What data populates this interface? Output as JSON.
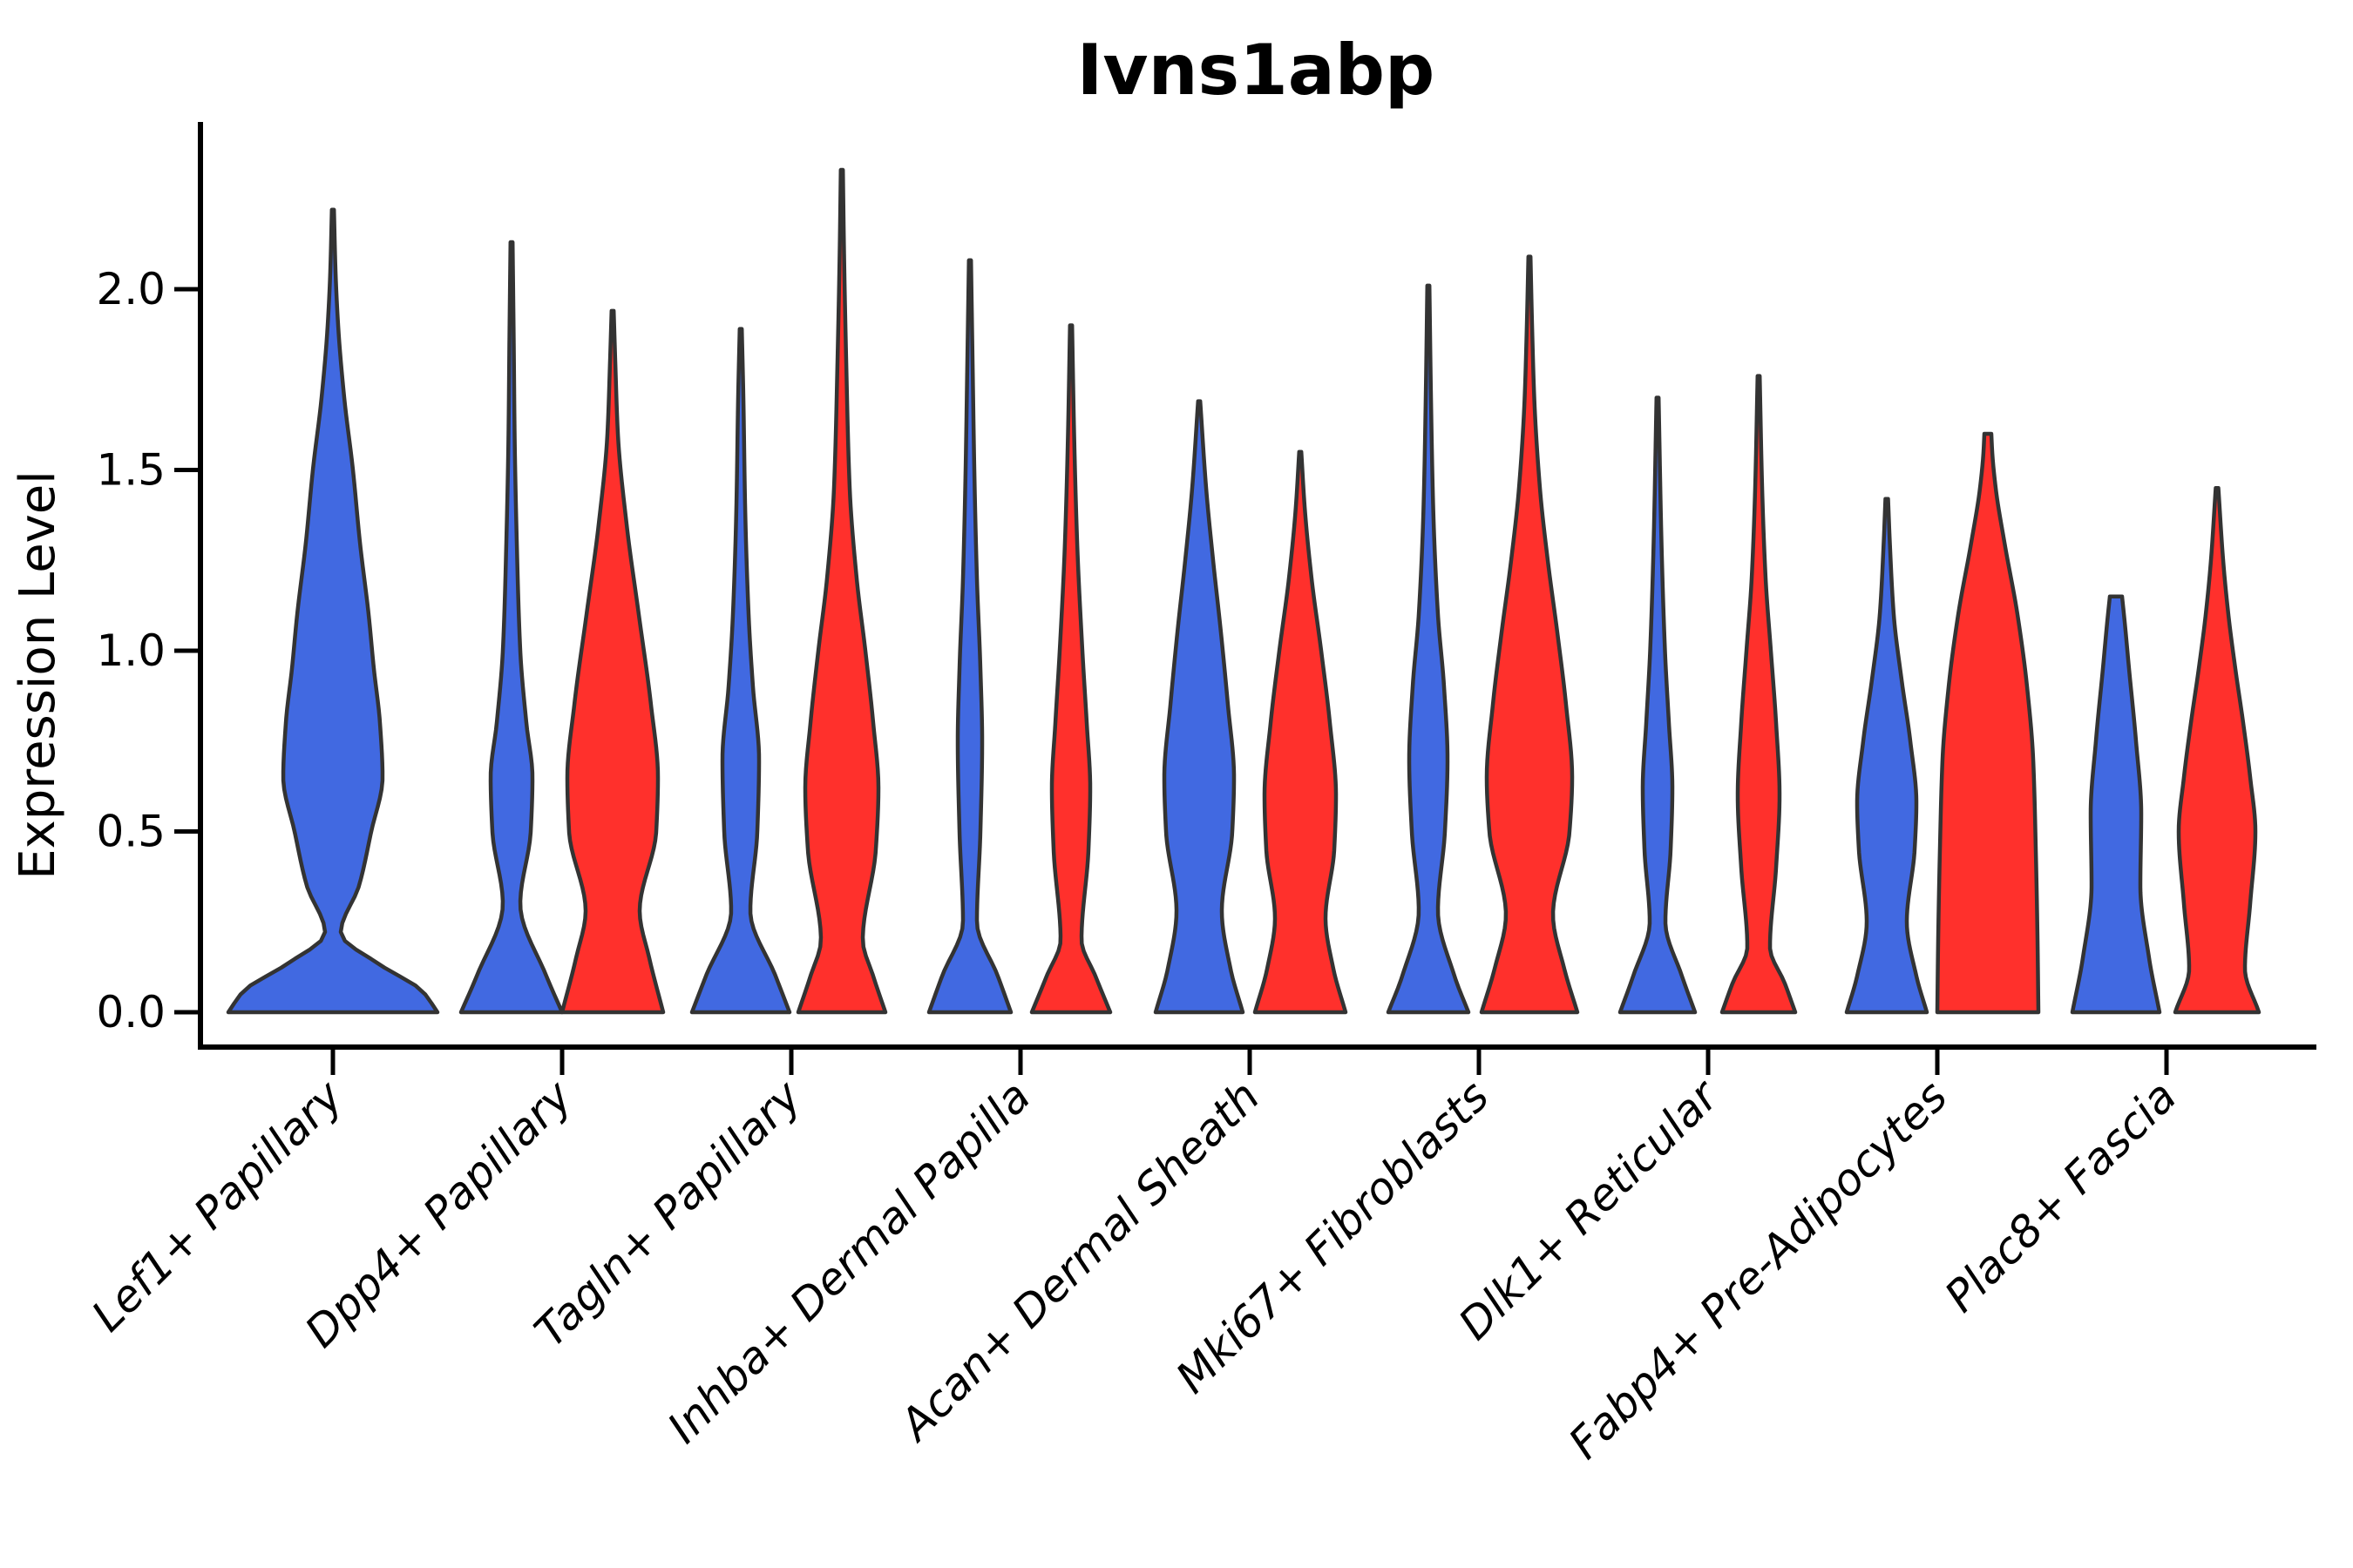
{
  "chart_data": {
    "type": "violin",
    "title": "Ivns1abp",
    "ylabel": "Expression Level",
    "xlabel": "",
    "grid": false,
    "legend": "none",
    "ylim": [
      -0.12,
      2.45
    ],
    "yticks": [
      {
        "label": "0.0",
        "value": 0.0
      },
      {
        "label": "0.5",
        "value": 0.5
      },
      {
        "label": "1.0",
        "value": 1.0
      },
      {
        "label": "1.5",
        "value": 1.5
      },
      {
        "label": "2.0",
        "value": 2.0
      }
    ],
    "categories": [
      "Lef1+ Papillary",
      "Dpp4+ Papillary",
      "Tagln+ Papillary",
      "Inhba+ Dermal Papilla",
      "Acan+ Dermal Sheath",
      "Mki67+ Fibroblasts",
      "Dlk1+ Reticular",
      "Fabp4+ Pre-Adipocytes",
      "Plac8+ Fascia"
    ],
    "groups": [
      "blue",
      "red"
    ],
    "group_colors": {
      "blue": "#4169E1",
      "red": "#FF302C"
    },
    "edge_color": "#333333",
    "axis_color": "#000000",
    "violins": [
      {
        "category_index": 0,
        "category": "Lef1+ Papillary",
        "group": "blue",
        "single": true,
        "max_expression": 2.22,
        "profile": [
          [
            0,
            120
          ],
          [
            0.06,
            102
          ],
          [
            0.13,
            55
          ],
          [
            0.22,
            9
          ],
          [
            0.35,
            30
          ],
          [
            0.5,
            44
          ],
          [
            0.65,
            57
          ],
          [
            0.8,
            54
          ],
          [
            0.95,
            47
          ],
          [
            1.1,
            41
          ],
          [
            1.3,
            31
          ],
          [
            1.5,
            23
          ],
          [
            1.7,
            13
          ],
          [
            1.9,
            6
          ],
          [
            2.05,
            3
          ],
          [
            2.22,
            1.2
          ]
        ]
      },
      {
        "category_index": 1,
        "category": "Dpp4+ Papillary",
        "group": "blue",
        "single": false,
        "max_expression": 2.13,
        "profile": [
          [
            0,
            58
          ],
          [
            0.1,
            40
          ],
          [
            0.3,
            10
          ],
          [
            0.5,
            22
          ],
          [
            0.65,
            24
          ],
          [
            0.8,
            17
          ],
          [
            1.0,
            10
          ],
          [
            1.3,
            6
          ],
          [
            1.6,
            3.5
          ],
          [
            1.85,
            2.5
          ],
          [
            2.13,
            1.2
          ]
        ]
      },
      {
        "category_index": 1,
        "category": "Dpp4+ Papillary",
        "group": "red",
        "single": false,
        "max_expression": 1.94,
        "profile": [
          [
            0,
            58
          ],
          [
            0.15,
            42
          ],
          [
            0.28,
            31
          ],
          [
            0.5,
            50
          ],
          [
            0.65,
            52
          ],
          [
            0.85,
            44
          ],
          [
            1.1,
            30
          ],
          [
            1.35,
            16
          ],
          [
            1.6,
            6
          ],
          [
            1.8,
            3
          ],
          [
            1.94,
            1.2
          ]
        ]
      },
      {
        "category_index": 2,
        "category": "Tagln+ Papillary",
        "group": "blue",
        "single": false,
        "max_expression": 1.89,
        "profile": [
          [
            0,
            56
          ],
          [
            0.1,
            40
          ],
          [
            0.28,
            11
          ],
          [
            0.5,
            19
          ],
          [
            0.7,
            21
          ],
          [
            0.9,
            14
          ],
          [
            1.1,
            9
          ],
          [
            1.4,
            5
          ],
          [
            1.7,
            3
          ],
          [
            1.89,
            1.2
          ]
        ]
      },
      {
        "category_index": 2,
        "category": "Tagln+ Papillary",
        "group": "red",
        "single": false,
        "max_expression": 2.33,
        "profile": [
          [
            0,
            50
          ],
          [
            0.1,
            36
          ],
          [
            0.2,
            24
          ],
          [
            0.45,
            39
          ],
          [
            0.62,
            42
          ],
          [
            0.8,
            36
          ],
          [
            1.0,
            27
          ],
          [
            1.2,
            17
          ],
          [
            1.45,
            9
          ],
          [
            1.8,
            5
          ],
          [
            2.1,
            2.5
          ],
          [
            2.33,
            1.2
          ]
        ]
      },
      {
        "category_index": 3,
        "category": "Inhba+ Dermal Papilla",
        "group": "blue",
        "single": false,
        "max_expression": 2.08,
        "profile": [
          [
            0,
            47
          ],
          [
            0.1,
            32
          ],
          [
            0.25,
            8
          ],
          [
            0.5,
            12
          ],
          [
            0.75,
            14
          ],
          [
            0.95,
            12
          ],
          [
            1.2,
            8
          ],
          [
            1.5,
            5
          ],
          [
            1.8,
            3
          ],
          [
            2.08,
            1.2
          ]
        ]
      },
      {
        "category_index": 3,
        "category": "Inhba+ Dermal Papilla",
        "group": "red",
        "single": false,
        "max_expression": 1.9,
        "profile": [
          [
            0,
            45
          ],
          [
            0.1,
            28
          ],
          [
            0.2,
            12
          ],
          [
            0.45,
            20
          ],
          [
            0.62,
            22
          ],
          [
            0.8,
            18
          ],
          [
            1.0,
            13
          ],
          [
            1.3,
            7
          ],
          [
            1.6,
            3.5
          ],
          [
            1.9,
            1.2
          ]
        ]
      },
      {
        "category_index": 4,
        "category": "Acan+ Dermal Sheath",
        "group": "blue",
        "single": false,
        "max_expression": 1.69,
        "profile": [
          [
            0,
            50
          ],
          [
            0.12,
            36
          ],
          [
            0.28,
            26
          ],
          [
            0.5,
            38
          ],
          [
            0.65,
            40
          ],
          [
            0.85,
            33
          ],
          [
            1.05,
            25
          ],
          [
            1.25,
            16
          ],
          [
            1.45,
            8
          ],
          [
            1.69,
            1.2
          ]
        ]
      },
      {
        "category_index": 4,
        "category": "Acan+ Dermal Sheath",
        "group": "red",
        "single": false,
        "max_expression": 1.55,
        "profile": [
          [
            0,
            52
          ],
          [
            0.12,
            38
          ],
          [
            0.26,
            29
          ],
          [
            0.45,
            39
          ],
          [
            0.6,
            41
          ],
          [
            0.8,
            34
          ],
          [
            1.0,
            24
          ],
          [
            1.2,
            13
          ],
          [
            1.4,
            5
          ],
          [
            1.55,
            1.2
          ]
        ]
      },
      {
        "category_index": 5,
        "category": "Mki67+ Fibroblasts",
        "group": "blue",
        "single": false,
        "max_expression": 2.01,
        "profile": [
          [
            0,
            46
          ],
          [
            0.1,
            30
          ],
          [
            0.28,
            11
          ],
          [
            0.5,
            19
          ],
          [
            0.7,
            22
          ],
          [
            0.9,
            18
          ],
          [
            1.1,
            11
          ],
          [
            1.4,
            5.5
          ],
          [
            1.7,
            3
          ],
          [
            2.01,
            1.2
          ]
        ]
      },
      {
        "category_index": 5,
        "category": "Mki67+ Fibroblasts",
        "group": "red",
        "single": false,
        "max_expression": 2.09,
        "profile": [
          [
            0,
            55
          ],
          [
            0.12,
            40
          ],
          [
            0.27,
            27
          ],
          [
            0.5,
            46
          ],
          [
            0.65,
            49
          ],
          [
            0.85,
            42
          ],
          [
            1.05,
            32
          ],
          [
            1.25,
            21
          ],
          [
            1.45,
            12
          ],
          [
            1.7,
            5.5
          ],
          [
            1.9,
            3
          ],
          [
            2.09,
            1.2
          ]
        ]
      },
      {
        "category_index": 6,
        "category": "Dlk1+ Reticular",
        "group": "blue",
        "single": false,
        "max_expression": 1.7,
        "profile": [
          [
            0,
            43
          ],
          [
            0.1,
            28
          ],
          [
            0.25,
            9
          ],
          [
            0.45,
            15
          ],
          [
            0.62,
            17
          ],
          [
            0.8,
            13
          ],
          [
            1.0,
            8.5
          ],
          [
            1.3,
            4.5
          ],
          [
            1.7,
            1.2
          ]
        ]
      },
      {
        "category_index": 6,
        "category": "Dlk1+ Reticular",
        "group": "red",
        "single": false,
        "max_expression": 1.76,
        "profile": [
          [
            0,
            42
          ],
          [
            0.08,
            30
          ],
          [
            0.18,
            13
          ],
          [
            0.4,
            20
          ],
          [
            0.6,
            24
          ],
          [
            0.8,
            20
          ],
          [
            1.0,
            14
          ],
          [
            1.2,
            8
          ],
          [
            1.45,
            4
          ],
          [
            1.76,
            1.2
          ]
        ]
      },
      {
        "category_index": 7,
        "category": "Fabp4+ Pre-Adipocytes",
        "group": "blue",
        "single": false,
        "max_expression": 1.42,
        "profile": [
          [
            0,
            46
          ],
          [
            0.1,
            34
          ],
          [
            0.25,
            23
          ],
          [
            0.45,
            32
          ],
          [
            0.58,
            34
          ],
          [
            0.75,
            27
          ],
          [
            0.92,
            17
          ],
          [
            1.1,
            8
          ],
          [
            1.3,
            3.5
          ],
          [
            1.42,
            1.5
          ]
        ]
      },
      {
        "category_index": 7,
        "category": "Fabp4+ Pre-Adipocytes",
        "group": "red",
        "single": false,
        "max_expression": 1.6,
        "profile": [
          [
            0,
            58
          ],
          [
            0.2,
            57
          ],
          [
            0.45,
            55
          ],
          [
            0.7,
            52
          ],
          [
            0.9,
            45
          ],
          [
            1.1,
            34
          ],
          [
            1.3,
            19
          ],
          [
            1.45,
            9
          ],
          [
            1.55,
            5
          ],
          [
            1.6,
            4
          ]
        ]
      },
      {
        "category_index": 8,
        "category": "Plac8+ Fascia",
        "group": "blue",
        "single": false,
        "max_expression": 1.15,
        "profile": [
          [
            0,
            50
          ],
          [
            0.15,
            38
          ],
          [
            0.35,
            28
          ],
          [
            0.55,
            29
          ],
          [
            0.75,
            23
          ],
          [
            0.95,
            15
          ],
          [
            1.08,
            10
          ],
          [
            1.15,
            7
          ]
        ]
      },
      {
        "category_index": 8,
        "category": "Plac8+ Fascia",
        "group": "red",
        "single": false,
        "max_expression": 1.45,
        "profile": [
          [
            0,
            48
          ],
          [
            0.12,
            32
          ],
          [
            0.3,
            38
          ],
          [
            0.5,
            44
          ],
          [
            0.65,
            38
          ],
          [
            0.8,
            30
          ],
          [
            0.95,
            21
          ],
          [
            1.1,
            13
          ],
          [
            1.25,
            7
          ],
          [
            1.45,
            1.5
          ]
        ]
      }
    ]
  }
}
